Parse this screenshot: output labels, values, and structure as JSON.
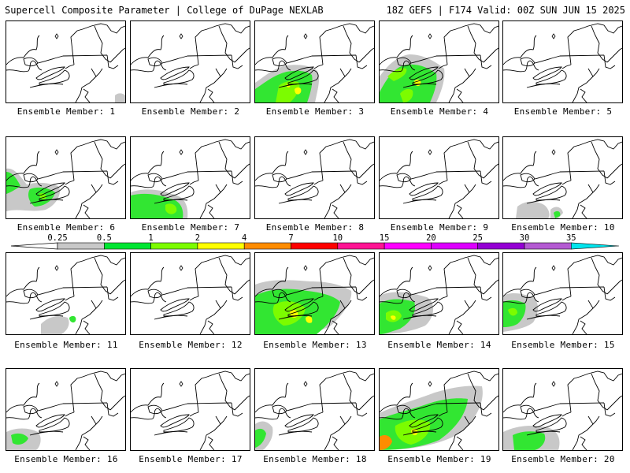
{
  "header": {
    "left": "Supercell Composite Parameter | College of DuPage NEXLAB",
    "right": "18Z GEFS | F174 Valid: 00Z SUN JUN 15 2025"
  },
  "panels": [
    {
      "label": "Ensemble Member: 1"
    },
    {
      "label": "Ensemble Member: 2"
    },
    {
      "label": "Ensemble Member: 3"
    },
    {
      "label": "Ensemble Member: 4"
    },
    {
      "label": "Ensemble Member: 5"
    },
    {
      "label": "Ensemble Member: 6"
    },
    {
      "label": "Ensemble Member: 7"
    },
    {
      "label": "Ensemble Member: 8"
    },
    {
      "label": "Ensemble Member: 9"
    },
    {
      "label": "Ensemble Member: 10"
    },
    {
      "label": "Ensemble Member: 11"
    },
    {
      "label": "Ensemble Member: 12"
    },
    {
      "label": "Ensemble Member: 13"
    },
    {
      "label": "Ensemble Member: 14"
    },
    {
      "label": "Ensemble Member: 15"
    },
    {
      "label": "Ensemble Member: 16"
    },
    {
      "label": "Ensemble Member: 17"
    },
    {
      "label": "Ensemble Member: 18"
    },
    {
      "label": "Ensemble Member: 19"
    },
    {
      "label": "Ensemble Member: 20"
    }
  ],
  "colorbar": {
    "ticks": [
      "0.25",
      "0.5",
      "1",
      "2",
      "4",
      "7",
      "10",
      "15",
      "20",
      "25",
      "30",
      "35"
    ],
    "colors": [
      "#c8c8c8",
      "#00e632",
      "#7cfc00",
      "#ffff00",
      "#ff8c00",
      "#ff0000",
      "#ff1493",
      "#ff00ff",
      "#dd00ff",
      "#9400d3",
      "#b45ad2",
      "#00e5ee"
    ]
  },
  "map_colors": {
    "gray": "#c8c8c8",
    "green": "#32e632",
    "lightgreen": "#7cfc00",
    "yellow": "#ffff00",
    "orange": "#ff8c00"
  }
}
